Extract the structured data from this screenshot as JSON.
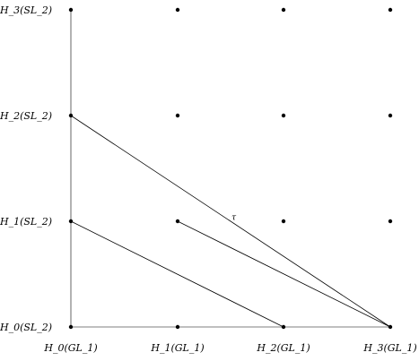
{
  "y_labels": [
    "H_0(SL_2)",
    "H_1(SL_2)",
    "H_2(SL_2)",
    "H_3(SL_2)"
  ],
  "x_labels": [
    "H_0(GL_1)",
    "H_1(GL_1)",
    "H_2(GL_1)",
    "H_3(GL_1)"
  ],
  "tau_label": "τ",
  "connections": [
    {
      "from": [
        0,
        2
      ],
      "to": [
        3,
        0
      ]
    },
    {
      "from": [
        0,
        1
      ],
      "to": [
        2,
        0
      ]
    },
    {
      "from": [
        1,
        1
      ],
      "to": [
        3,
        0
      ]
    }
  ],
  "tau_on_connection": 0
}
